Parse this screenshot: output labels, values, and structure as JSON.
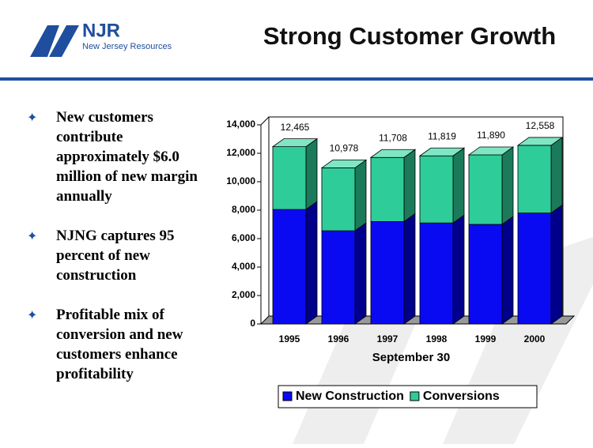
{
  "logo": {
    "mark": "NJR",
    "name": "New Jersey Resources"
  },
  "title": "Strong Customer Growth",
  "bullets": [
    "New customers contribute approximately $6.0 million of new margin annually",
    "NJNG captures 95 percent of new construction",
    "Profitable mix of conversion and new customers enhance profitability"
  ],
  "chart_data": {
    "type": "bar3d_stacked",
    "categories": [
      "1995",
      "1996",
      "1997",
      "1998",
      "1999",
      "2000"
    ],
    "series": [
      {
        "name": "New Construction",
        "color": "#0a0af2",
        "values": [
          8050,
          6550,
          7200,
          7100,
          7000,
          7800
        ]
      },
      {
        "name": "Conversions",
        "color": "#2ecc99",
        "values": [
          4415,
          4428,
          4508,
          4719,
          4890,
          4758
        ]
      }
    ],
    "totals": [
      12465,
      10978,
      11708,
      11819,
      11890,
      12558
    ],
    "total_labels": [
      "12,465",
      "10,978",
      "11,708",
      "11,819",
      "11,890",
      "12,558"
    ],
    "x_label": "September 30",
    "ylim": [
      0,
      14000
    ],
    "yticks": [
      0,
      {
        "value": 2000,
        "label": "2,000"
      },
      {
        "value": 4000,
        "label": "4,000"
      },
      {
        "value": 6000,
        "label": "6,000"
      },
      {
        "value": 8000,
        "label": "8,000"
      },
      {
        "value": 10000,
        "label": "10,000"
      },
      {
        "value": 12000,
        "label": "12,000"
      },
      {
        "value": 14000,
        "label": "14,000"
      }
    ]
  }
}
